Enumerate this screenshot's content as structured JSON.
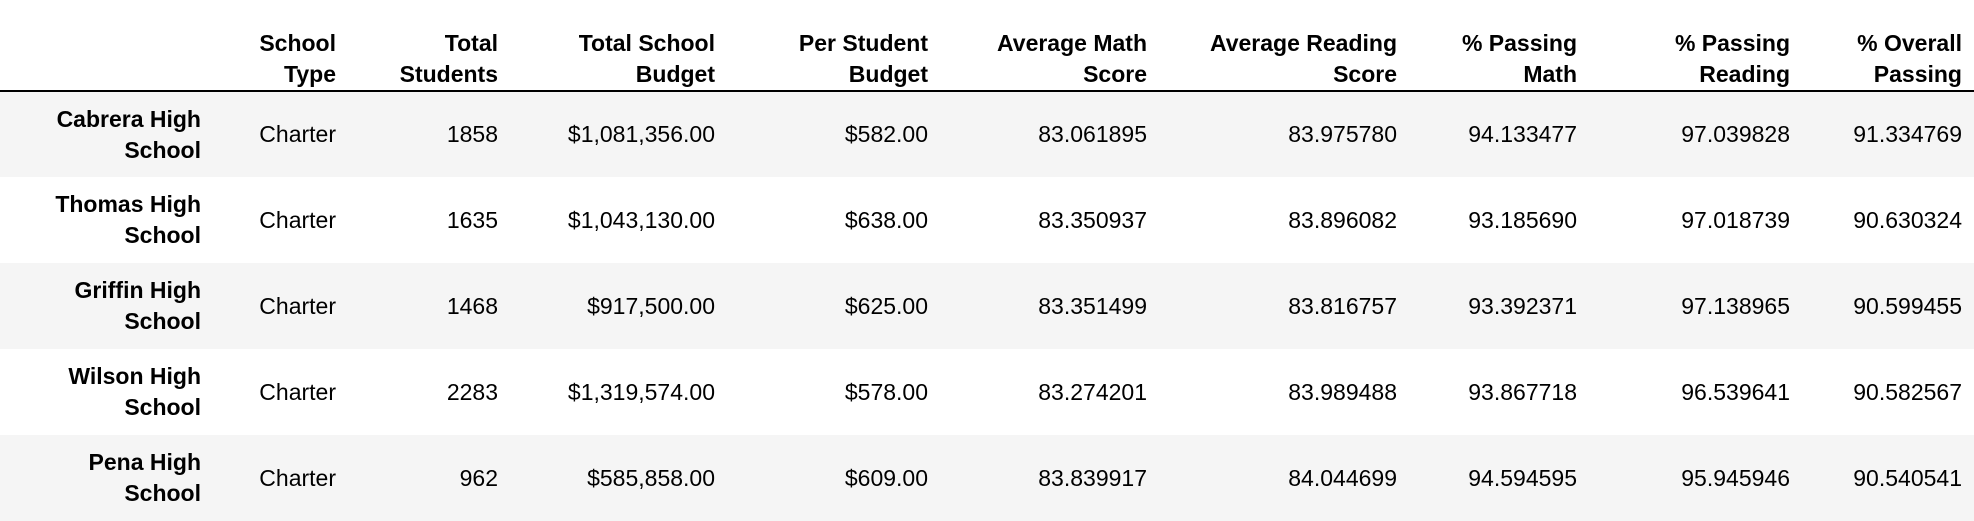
{
  "table": {
    "index_header": "",
    "columns": [
      "School Type",
      "Total Students",
      "Total School Budget",
      "Per Student Budget",
      "Average Math Score",
      "Average Reading Score",
      "% Passing Math",
      "% Passing Reading",
      "% Overall Passing"
    ],
    "rows": [
      {
        "school": "Cabrera High School",
        "values": [
          "Charter",
          "1858",
          "$1,081,356.00",
          "$582.00",
          "83.061895",
          "83.975780",
          "94.133477",
          "97.039828",
          "91.334769"
        ]
      },
      {
        "school": "Thomas High School",
        "values": [
          "Charter",
          "1635",
          "$1,043,130.00",
          "$638.00",
          "83.350937",
          "83.896082",
          "93.185690",
          "97.018739",
          "90.630324"
        ]
      },
      {
        "school": "Griffin High School",
        "values": [
          "Charter",
          "1468",
          "$917,500.00",
          "$625.00",
          "83.351499",
          "83.816757",
          "93.392371",
          "97.138965",
          "90.599455"
        ]
      },
      {
        "school": "Wilson High School",
        "values": [
          "Charter",
          "2283",
          "$1,319,574.00",
          "$578.00",
          "83.274201",
          "83.989488",
          "93.867718",
          "96.539641",
          "90.582567"
        ]
      },
      {
        "school": "Pena High School",
        "values": [
          "Charter",
          "962",
          "$585,858.00",
          "$609.00",
          "83.839917",
          "84.044699",
          "94.594595",
          "95.945946",
          "90.540541"
        ]
      }
    ]
  },
  "colors": {
    "striped_row": "#f5f5f5",
    "header_rule": "#000000",
    "text": "#000000"
  }
}
